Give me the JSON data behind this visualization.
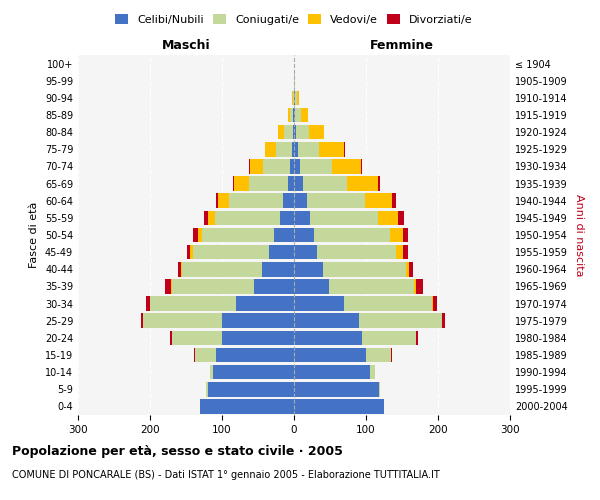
{
  "age_groups": [
    "0-4",
    "5-9",
    "10-14",
    "15-19",
    "20-24",
    "25-29",
    "30-34",
    "35-39",
    "40-44",
    "45-49",
    "50-54",
    "55-59",
    "60-64",
    "65-69",
    "70-74",
    "75-79",
    "80-84",
    "85-89",
    "90-94",
    "95-99",
    "100+"
  ],
  "birth_years": [
    "2000-2004",
    "1995-1999",
    "1990-1994",
    "1985-1989",
    "1980-1984",
    "1975-1979",
    "1970-1974",
    "1965-1969",
    "1960-1964",
    "1955-1959",
    "1950-1954",
    "1945-1949",
    "1940-1944",
    "1935-1939",
    "1930-1934",
    "1925-1929",
    "1920-1924",
    "1915-1919",
    "1910-1914",
    "1905-1909",
    "≤ 1904"
  ],
  "male_celibe": [
    130,
    120,
    112,
    108,
    100,
    100,
    80,
    55,
    45,
    35,
    28,
    20,
    15,
    8,
    5,
    3,
    2,
    1,
    0,
    0,
    0
  ],
  "male_coniugato": [
    0,
    2,
    5,
    30,
    70,
    110,
    120,
    115,
    110,
    105,
    100,
    90,
    75,
    55,
    38,
    22,
    12,
    5,
    2,
    0,
    0
  ],
  "male_vedovo": [
    0,
    0,
    0,
    0,
    0,
    0,
    0,
    1,
    2,
    4,
    6,
    10,
    15,
    20,
    18,
    15,
    8,
    3,
    1,
    0,
    0
  ],
  "male_divorziato": [
    0,
    0,
    0,
    1,
    2,
    3,
    5,
    8,
    4,
    5,
    6,
    5,
    3,
    2,
    1,
    0,
    0,
    0,
    0,
    0,
    0
  ],
  "female_celibe": [
    125,
    118,
    105,
    100,
    95,
    90,
    70,
    48,
    40,
    32,
    28,
    22,
    18,
    12,
    8,
    5,
    3,
    2,
    1,
    0,
    0
  ],
  "female_coniugato": [
    0,
    2,
    8,
    35,
    75,
    115,
    122,
    118,
    115,
    110,
    105,
    95,
    80,
    62,
    45,
    30,
    18,
    8,
    3,
    1,
    0
  ],
  "female_vedovo": [
    0,
    0,
    0,
    0,
    0,
    1,
    1,
    3,
    5,
    10,
    18,
    28,
    38,
    42,
    40,
    35,
    20,
    10,
    3,
    1,
    0
  ],
  "female_divorziato": [
    0,
    0,
    0,
    1,
    2,
    4,
    6,
    10,
    5,
    6,
    8,
    8,
    5,
    3,
    2,
    1,
    1,
    0,
    0,
    0,
    0
  ],
  "color_celibe": "#4472c4",
  "color_coniugato": "#c5d89b",
  "color_vedovo": "#ffc000",
  "color_divorziato": "#c0001a",
  "xlim": 300,
  "title": "Popolazione per età, sesso e stato civile · 2005",
  "subtitle": "COMUNE DI PONCARALE (BS) - Dati ISTAT 1° gennaio 2005 - Elaborazione TUTTITALIA.IT",
  "ylabel_left": "Fasce di età",
  "ylabel_right": "Anni di nascita",
  "xlabel_left": "Maschi",
  "xlabel_right": "Femmine",
  "bg_color": "#f5f5f5"
}
